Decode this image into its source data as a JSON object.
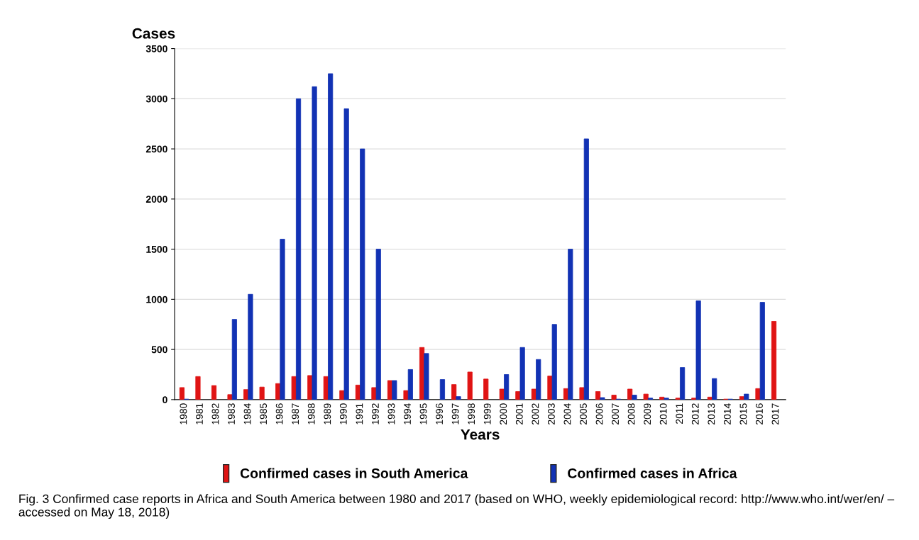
{
  "chart_data": {
    "type": "bar",
    "ylabel": "Cases",
    "xlabel": "Years",
    "categories": [
      "1980",
      "1981",
      "1982",
      "1983",
      "1984",
      "1985",
      "1986",
      "1987",
      "1988",
      "1989",
      "1990",
      "1991",
      "1992",
      "1993",
      "1994",
      "1995",
      "1996",
      "1997",
      "1998",
      "1999",
      "2000",
      "2001",
      "2002",
      "2003",
      "2004",
      "2005",
      "2006",
      "2007",
      "2008",
      "2009",
      "2010",
      "2011",
      "2012",
      "2013",
      "2014",
      "2015",
      "2016",
      "2017"
    ],
    "series": [
      {
        "name": "Confirmed cases in South America",
        "color": "#e01414",
        "values": [
          120,
          230,
          140,
          50,
          100,
          125,
          160,
          230,
          240,
          230,
          90,
          145,
          120,
          190,
          90,
          520,
          0,
          150,
          275,
          205,
          105,
          80,
          105,
          235,
          110,
          120,
          80,
          45,
          105,
          55,
          25,
          15,
          15,
          25,
          5,
          30,
          110,
          780
        ]
      },
      {
        "name": "Confirmed cases in Africa",
        "color": "#1232b4",
        "values": [
          5,
          0,
          0,
          800,
          1050,
          0,
          1600,
          3000,
          3120,
          3250,
          2900,
          2500,
          1500,
          190,
          300,
          460,
          200,
          30,
          0,
          0,
          250,
          520,
          400,
          750,
          1500,
          2600,
          20,
          5,
          45,
          15,
          15,
          320,
          985,
          210,
          5,
          55,
          970,
          null
        ]
      }
    ],
    "ylim": [
      0,
      3500
    ],
    "yticks": [
      0,
      500,
      1000,
      1500,
      2000,
      2500,
      3000,
      3500
    ],
    "grid": "y",
    "legend": "bottom",
    "annotations": [
      "Fig. 3 Confirmed case reports in Africa and South America between 1980 and 2017 (based on WHO, weekly epidemiological record: http://www.who.int/wer/en/ – accessed on May 18, 2018)"
    ]
  }
}
